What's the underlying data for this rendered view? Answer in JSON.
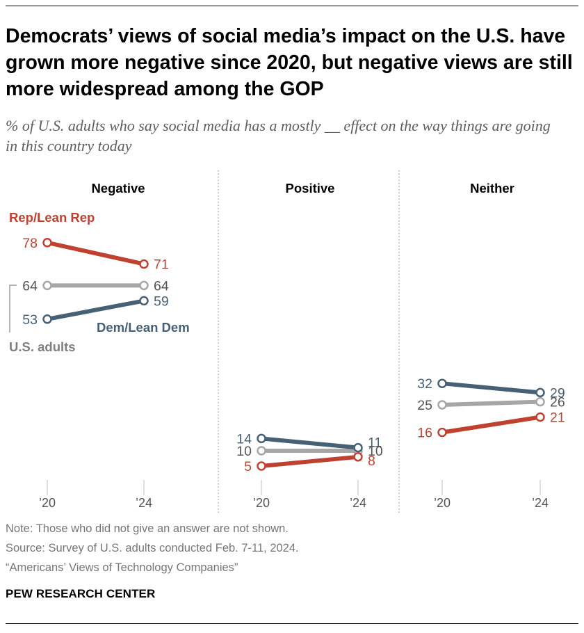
{
  "title": "Democrats’ views of social media’s impact on the U.S. have grown more negative since 2020, but negative views are still more widespread among the GOP",
  "subtitle": "% of U.S. adults who say social media has a mostly __ effect on the way things are going in this country today",
  "series_labels": {
    "rep": "Rep/Lean Rep",
    "dem": "Dem/Lean Dem",
    "all": "U.S. adults"
  },
  "colors": {
    "rep": "#bf4231",
    "dem": "#466076",
    "all": "#a6a6a6",
    "all_label": "#7f7f7f",
    "axis": "#bdbdbd"
  },
  "chart_data": {
    "type": "line",
    "x": [
      "’20",
      "’24"
    ],
    "ylim": [
      0,
      85
    ],
    "panels": [
      {
        "title": "Negative",
        "series": [
          {
            "key": "rep",
            "values": [
              78,
              71
            ]
          },
          {
            "key": "all",
            "values": [
              64,
              64
            ]
          },
          {
            "key": "dem",
            "values": [
              53,
              59
            ]
          }
        ]
      },
      {
        "title": "Positive",
        "series": [
          {
            "key": "dem",
            "values": [
              14,
              11
            ]
          },
          {
            "key": "all",
            "values": [
              10,
              10
            ]
          },
          {
            "key": "rep",
            "values": [
              5,
              8
            ]
          }
        ]
      },
      {
        "title": "Neither",
        "series": [
          {
            "key": "dem",
            "values": [
              32,
              29
            ]
          },
          {
            "key": "all",
            "values": [
              25,
              26
            ]
          },
          {
            "key": "rep",
            "values": [
              16,
              21
            ]
          }
        ]
      }
    ]
  },
  "footer": {
    "note": "Note: Those who did not give an answer are not shown.",
    "source": "Source: Survey of U.S. adults conducted Feb. 7-11, 2024.",
    "report": "“Americans’ Views of Technology Companies”",
    "brand": "PEW RESEARCH CENTER"
  }
}
